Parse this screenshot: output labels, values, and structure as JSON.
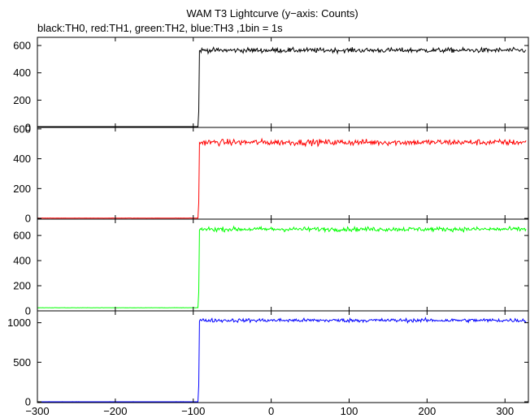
{
  "title": "WAM T3 Lightcurve (y−axis: Counts)",
  "subtitle": "black:TH0, red:TH1, green:TH2, blue:TH3 ,1bin = 1s",
  "chart_data": {
    "type": "line",
    "title": "WAM T3 Lightcurve (y−axis: Counts)",
    "subtitle": "black:TH0, red:TH1, green:TH2, blue:TH3 ,1bin = 1s",
    "x_range": [
      -300,
      330
    ],
    "x_ticks": [
      -300,
      -200,
      -100,
      0,
      100,
      200,
      300
    ],
    "x_tick_labels": [
      "−300",
      "−200",
      "−100",
      "0",
      "100",
      "200",
      "300"
    ],
    "trigger_x": -92,
    "panels": [
      {
        "name": "TH0",
        "color": "#000000",
        "ylim": [
          0,
          660
        ],
        "y_ticks": [
          0,
          200,
          400,
          600
        ],
        "y_tick_labels": [
          "0",
          "200",
          "400",
          "600"
        ],
        "pre_level": 5,
        "post_level": 565,
        "noise_amplitude": 30
      },
      {
        "name": "TH1",
        "color": "#ff0000",
        "ylim": [
          -5,
          610
        ],
        "y_ticks": [
          0,
          200,
          400,
          600
        ],
        "y_tick_labels": [
          "0",
          "200",
          "400",
          "600"
        ],
        "pre_level": 2,
        "post_level": 510,
        "noise_amplitude": 35
      },
      {
        "name": "TH2",
        "color": "#00ff00",
        "ylim": [
          0,
          730
        ],
        "y_ticks": [
          0,
          200,
          400,
          600
        ],
        "y_tick_labels": [
          "0",
          "200",
          "400",
          "600"
        ],
        "pre_level": 25,
        "post_level": 650,
        "noise_amplitude": 30
      },
      {
        "name": "TH3",
        "color": "#0000ff",
        "ylim": [
          -10,
          1150
        ],
        "y_ticks": [
          0,
          500,
          1000
        ],
        "y_tick_labels": [
          "0",
          "500",
          "1000"
        ],
        "pre_level": 0,
        "post_level": 1030,
        "noise_amplitude": 40
      }
    ]
  }
}
